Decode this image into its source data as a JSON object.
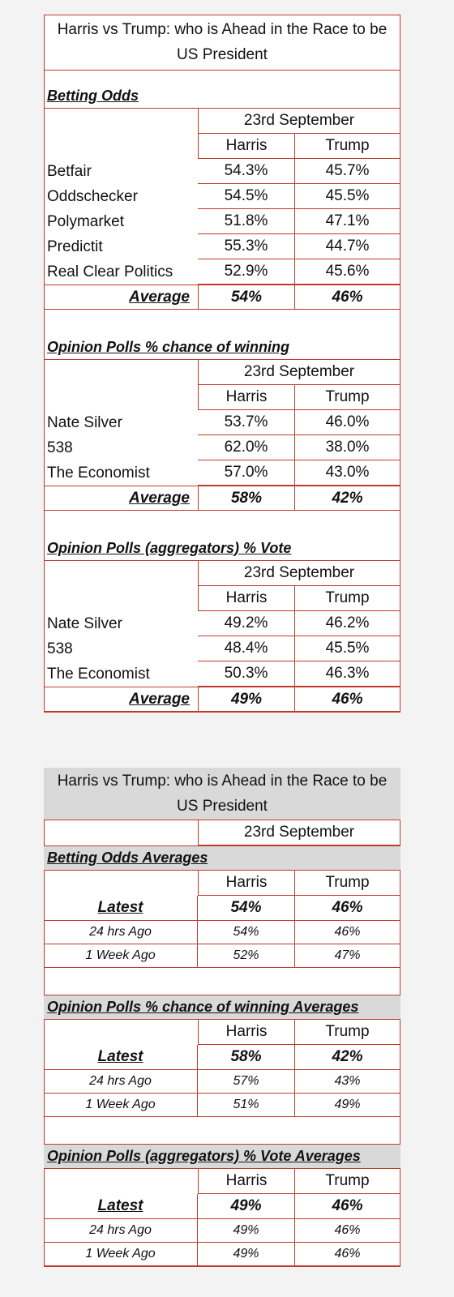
{
  "table1": {
    "title": "Harris vs Trump: who is Ahead in the Race to be US President",
    "sections": [
      {
        "heading": "Betting Odds",
        "date": "23rd September",
        "columns": [
          "Harris",
          "Trump"
        ],
        "rows": [
          [
            "Betfair",
            "54.3%",
            "45.7%"
          ],
          [
            "Oddschecker",
            "54.5%",
            "45.5%"
          ],
          [
            "Polymarket",
            "51.8%",
            "47.1%"
          ],
          [
            "Predictit",
            "55.3%",
            "44.7%"
          ],
          [
            "Real Clear Politics",
            "52.9%",
            "45.6%"
          ]
        ],
        "average": [
          "Average",
          "54%",
          "46%"
        ]
      },
      {
        "heading": "Opinion Polls % chance of winning",
        "date": "23rd September",
        "columns": [
          "Harris",
          "Trump"
        ],
        "rows": [
          [
            "Nate Silver",
            "53.7%",
            "46.0%"
          ],
          [
            "538",
            "62.0%",
            "38.0%"
          ],
          [
            "The Economist",
            "57.0%",
            "43.0%"
          ]
        ],
        "average": [
          "Average",
          "58%",
          "42%"
        ]
      },
      {
        "heading": "Opinion Polls (aggregators) % Vote",
        "date": "23rd September",
        "columns": [
          "Harris",
          "Trump"
        ],
        "rows": [
          [
            "Nate Silver",
            "49.2%",
            "46.2%"
          ],
          [
            "538",
            "48.4%",
            "45.5%"
          ],
          [
            "The Economist",
            "50.3%",
            "46.3%"
          ]
        ],
        "average": [
          "Average",
          "49%",
          "46%"
        ]
      }
    ]
  },
  "table2": {
    "title": "Harris vs Trump: who is Ahead in the Race to be US President",
    "date": "23rd September",
    "sections": [
      {
        "heading": "Betting Odds Averages",
        "columns": [
          "Harris",
          "Trump"
        ],
        "rows": [
          [
            "Latest",
            "54%",
            "46%"
          ],
          [
            "24 hrs Ago",
            "54%",
            "46%"
          ],
          [
            "1 Week Ago",
            "52%",
            "47%"
          ]
        ]
      },
      {
        "heading": "Opinion Polls % chance of winning Averages",
        "columns": [
          "Harris",
          "Trump"
        ],
        "rows": [
          [
            "Latest",
            "58%",
            "42%"
          ],
          [
            "24 hrs Ago",
            "57%",
            "43%"
          ],
          [
            "1 Week Ago",
            "51%",
            "49%"
          ]
        ]
      },
      {
        "heading": "Opinion Polls (aggregators) % Vote Averages",
        "columns": [
          "Harris",
          "Trump"
        ],
        "rows": [
          [
            "Latest",
            "49%",
            "46%"
          ],
          [
            "24 hrs Ago",
            "49%",
            "46%"
          ],
          [
            "1 Week Ago",
            "49%",
            "46%"
          ]
        ]
      }
    ]
  }
}
